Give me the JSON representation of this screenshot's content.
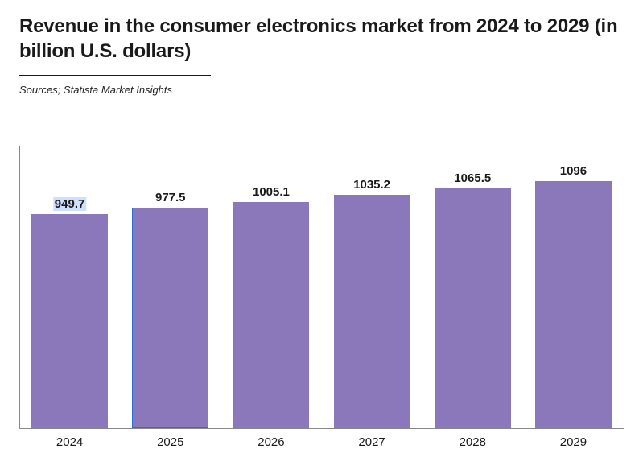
{
  "title": "Revenue in the consumer electronics market from 2024 to 2029 (in billion U.S. dollars)",
  "source": "Sources; Statista Market Insights",
  "chart": {
    "type": "bar",
    "categories": [
      "2024",
      "2025",
      "2026",
      "2027",
      "2028",
      "2029"
    ],
    "values": [
      949.7,
      977.5,
      1005.1,
      1035.2,
      1065.5,
      1096
    ],
    "value_labels": [
      "949.7",
      "977.5",
      "1005.1",
      "1035.2",
      "1065.5",
      "1096"
    ],
    "bar_color": "#8b78bb",
    "highlight_index": 1,
    "highlight_border_color": "#2a6fd6",
    "label_selection_index": 0,
    "ylim": [
      0,
      1250
    ],
    "background_color": "#ffffff",
    "axis_color": "#888888",
    "bar_width": 0.76,
    "title_fontsize": 24,
    "label_fontsize": 15,
    "value_label_fontsize": 15,
    "value_label_fontweight": 700
  }
}
